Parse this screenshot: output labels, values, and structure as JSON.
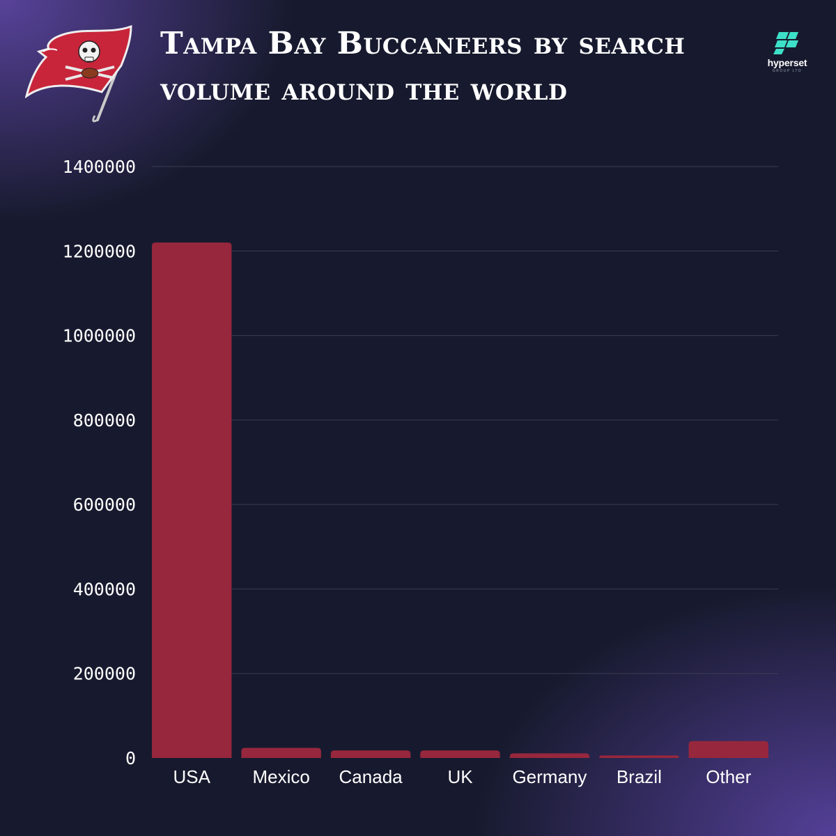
{
  "header": {
    "title": "Tampa Bay Buccaneers by search volume around the world",
    "team_logo_icon": "buccaneers-flag-logo-icon",
    "brand_name": "hyperset",
    "brand_sub": "GROUP LTD",
    "brand_icon": "hyperset-logo-icon"
  },
  "colors": {
    "background": "#171a2e",
    "bar": "#97273d",
    "gridline": "#3a3d52",
    "brand_accent": "#3de0c8"
  },
  "chart_data": {
    "type": "bar",
    "title": "Tampa Bay Buccaneers by search volume around the world",
    "xlabel": "",
    "ylabel": "",
    "categories": [
      "USA",
      "Mexico",
      "Canada",
      "UK",
      "Germany",
      "Brazil",
      "Other"
    ],
    "values": [
      1220000,
      24000,
      18000,
      18000,
      11000,
      6000,
      40000
    ],
    "ylim": [
      0,
      1400000
    ],
    "yticks": [
      0,
      200000,
      400000,
      600000,
      800000,
      1000000,
      1200000,
      1400000
    ],
    "ytick_labels": [
      "0",
      "200000",
      "400000",
      "600000",
      "800000",
      "1000000",
      "1200000",
      "1400000"
    ],
    "grid": true,
    "legend": "none"
  }
}
